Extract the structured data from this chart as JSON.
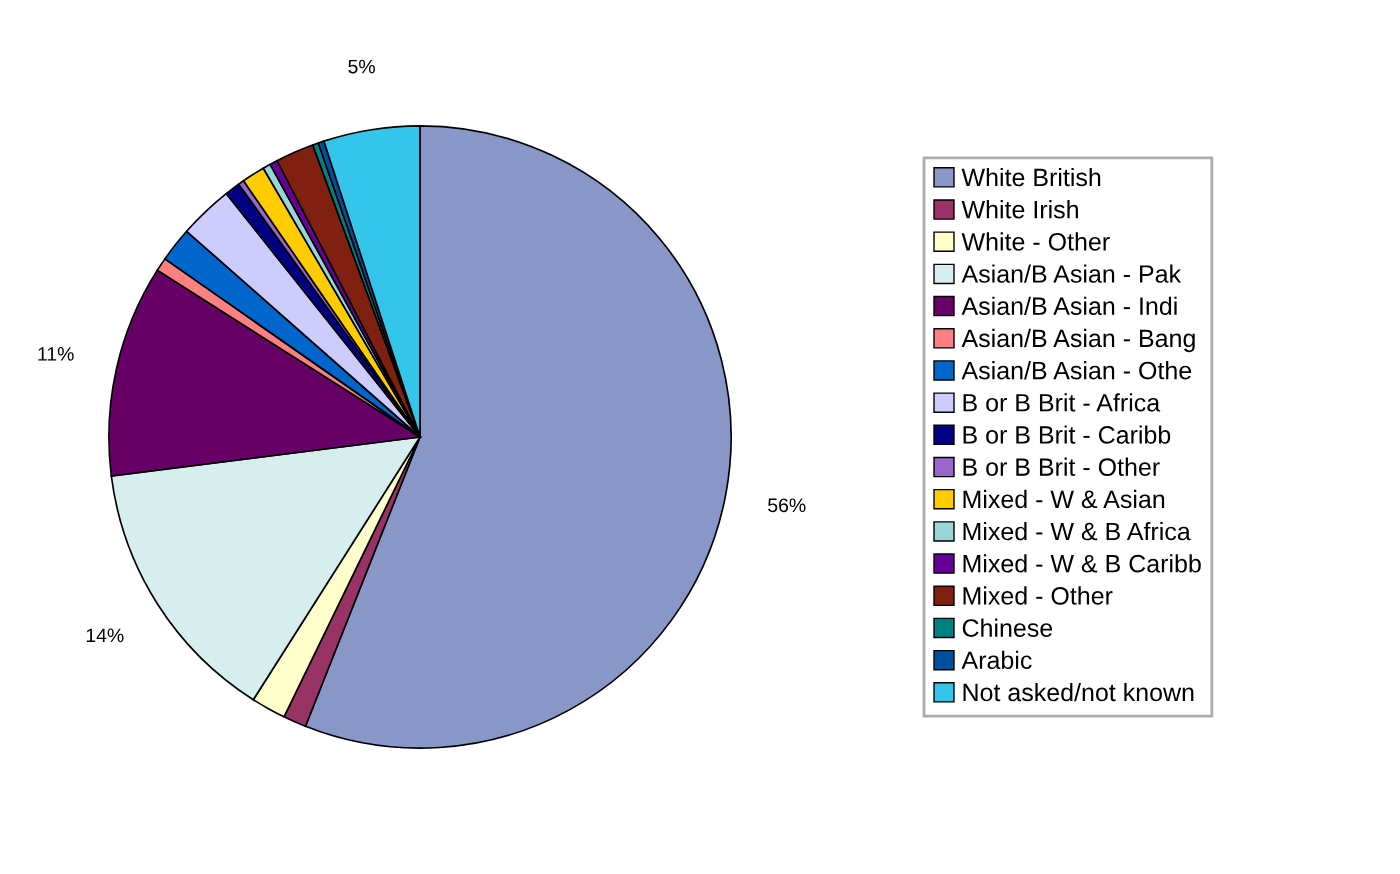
{
  "chart_data": {
    "type": "pie",
    "categories": [
      "White British",
      "White Irish",
      "White - Other",
      "Asian/B Asian - Pak",
      "Asian/B Asian - Indi",
      "Asian/B Asian - Bang",
      "Asian/B Asian - Othe",
      "B or B Brit - Africa",
      "B or B Brit - Caribb",
      "B or B Brit - Other",
      "Mixed - W & Asian",
      "Mixed - W & B Africa",
      "Mixed - W & B Caribb",
      "Mixed - Other",
      "Chinese",
      "Arabic",
      "Not asked/not known"
    ],
    "values": [
      56,
      1.2,
      1.8,
      14,
      11,
      0.7,
      1.8,
      2.8,
      0.8,
      0.3,
      1.2,
      0.4,
      0.4,
      2,
      0.3,
      0.3,
      5
    ],
    "colors": [
      "#8896c8",
      "#993366",
      "#ffffcc",
      "#d6eeee",
      "#660066",
      "#ff8080",
      "#0066cc",
      "#ccccff",
      "#000080",
      "#9966cc",
      "#ffcc00",
      "#99d6d6",
      "#660099",
      "#802010",
      "#008080",
      "#0050a0",
      "#33c6ea"
    ],
    "value_labels": [
      "56%",
      null,
      null,
      "14%",
      "11%",
      null,
      null,
      null,
      null,
      null,
      null,
      null,
      null,
      null,
      null,
      null,
      "5%"
    ],
    "legend": "right"
  }
}
